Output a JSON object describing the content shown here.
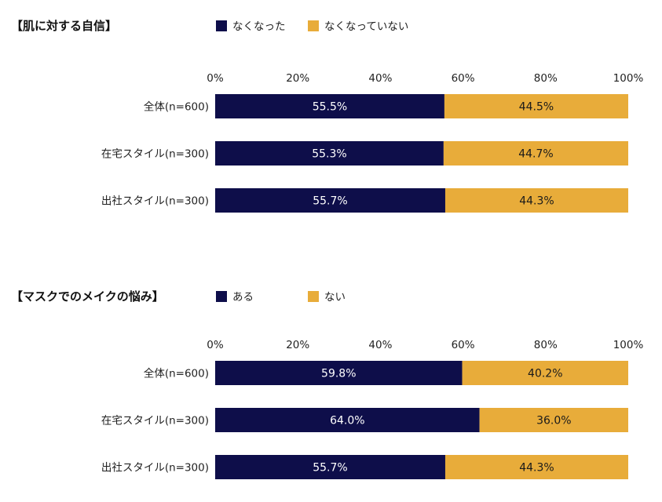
{
  "colors": {
    "series1": "#0e0e4a",
    "series2": "#e8ac3a"
  },
  "chart_data": [
    {
      "type": "bar",
      "orientation": "horizontal-stacked",
      "title": "【肌に対する自信】",
      "x_tick_labels": [
        "0%",
        "20%",
        "40%",
        "60%",
        "80%",
        "100%"
      ],
      "xlim": [
        0,
        100
      ],
      "legend_placement": "top",
      "categories": [
        "全体(n=600)",
        "在宅スタイル(n=300)",
        "出社スタイル(n=300)"
      ],
      "series": [
        {
          "name": "なくなった",
          "values": [
            55.5,
            55.3,
            55.7
          ],
          "labels": [
            "55.5%",
            "55.3%",
            "55.7%"
          ]
        },
        {
          "name": "なくなっていない",
          "values": [
            44.5,
            44.7,
            44.3
          ],
          "labels": [
            "44.5%",
            "44.7%",
            "44.3%"
          ]
        }
      ]
    },
    {
      "type": "bar",
      "orientation": "horizontal-stacked",
      "title": "【マスクでのメイクの悩み】",
      "x_tick_labels": [
        "0%",
        "20%",
        "40%",
        "60%",
        "80%",
        "100%"
      ],
      "xlim": [
        0,
        100
      ],
      "legend_placement": "top",
      "categories": [
        "全体(n=600)",
        "在宅スタイル(n=300)",
        "出社スタイル(n=300)"
      ],
      "series": [
        {
          "name": "ある",
          "values": [
            59.8,
            64.0,
            55.7
          ],
          "labels": [
            "59.8%",
            "64.0%",
            "55.7%"
          ]
        },
        {
          "name": "ない",
          "values": [
            40.2,
            36.0,
            44.3
          ],
          "labels": [
            "40.2%",
            "36.0%",
            "44.3%"
          ]
        }
      ]
    }
  ]
}
